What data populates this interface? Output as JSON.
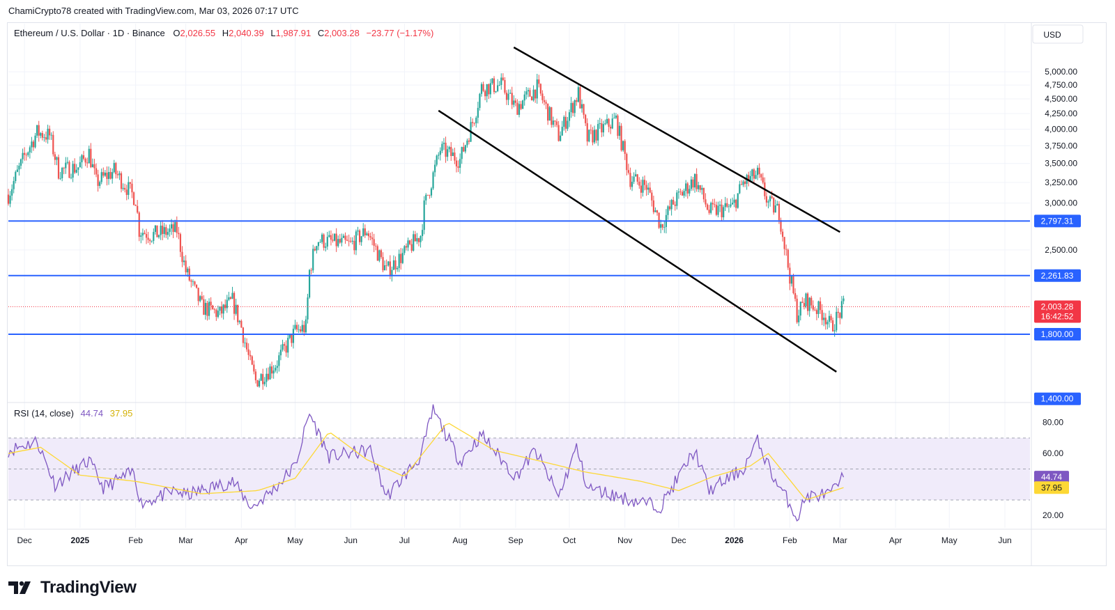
{
  "attribution": "ChamiCrypto78 created with TradingView.com, Mar 03, 2026 07:17 UTC",
  "brand": {
    "name": "TradingView",
    "logo_icon": "tradingview-logo-icon"
  },
  "chart_data": {
    "type": "candlestick",
    "symbol_title": "Ethereum / U.S. Dollar · 1D · Binance",
    "ohlc": {
      "open_label": "O",
      "open": "2,026.55",
      "high_label": "H",
      "high": "2,040.39",
      "low_label": "L",
      "low": "1,987.91",
      "close_label": "C",
      "close": "2,003.28",
      "change": "−23.77 (−1.17%)"
    },
    "currency": "USD",
    "price_axis": {
      "scale": "log",
      "ticks": [
        "5,000.00",
        "4,750.00",
        "4,500.00",
        "4,250.00",
        "4,000.00",
        "3,750.00",
        "3,500.00",
        "3,250.00",
        "3,000.00",
        "2,500.00"
      ]
    },
    "price_range": [
      1380,
      5500
    ],
    "time_axis": {
      "start": "2024-11-22",
      "end": "2026-06-15",
      "labels": [
        {
          "date": "2024-12-01",
          "text": "Dec",
          "bold": false
        },
        {
          "date": "2025-01-01",
          "text": "2025",
          "bold": true
        },
        {
          "date": "2025-02-01",
          "text": "Feb",
          "bold": false
        },
        {
          "date": "2025-03-01",
          "text": "Mar",
          "bold": false
        },
        {
          "date": "2025-04-01",
          "text": "Apr",
          "bold": false
        },
        {
          "date": "2025-05-01",
          "text": "May",
          "bold": false
        },
        {
          "date": "2025-06-01",
          "text": "Jun",
          "bold": false
        },
        {
          "date": "2025-07-01",
          "text": "Jul",
          "bold": false
        },
        {
          "date": "2025-08-01",
          "text": "Aug",
          "bold": false
        },
        {
          "date": "2025-09-01",
          "text": "Sep",
          "bold": false
        },
        {
          "date": "2025-10-01",
          "text": "Oct",
          "bold": false
        },
        {
          "date": "2025-11-01",
          "text": "Nov",
          "bold": false
        },
        {
          "date": "2025-12-01",
          "text": "Dec",
          "bold": false
        },
        {
          "date": "2026-01-01",
          "text": "2026",
          "bold": true
        },
        {
          "date": "2026-02-01",
          "text": "Feb",
          "bold": false
        },
        {
          "date": "2026-03-01",
          "text": "Mar",
          "bold": false
        },
        {
          "date": "2026-04-01",
          "text": "Apr",
          "bold": false
        },
        {
          "date": "2026-05-01",
          "text": "May",
          "bold": false
        },
        {
          "date": "2026-06-01",
          "text": "Jun",
          "bold": false
        }
      ]
    },
    "close_path": [
      {
        "date": "2024-11-22",
        "price": 3100
      },
      {
        "date": "2024-12-01",
        "price": 3600
      },
      {
        "date": "2024-12-08",
        "price": 3950
      },
      {
        "date": "2024-12-15",
        "price": 3900
      },
      {
        "date": "2024-12-20",
        "price": 3400
      },
      {
        "date": "2024-12-31",
        "price": 3450
      },
      {
        "date": "2025-01-06",
        "price": 3650
      },
      {
        "date": "2025-01-10",
        "price": 3250
      },
      {
        "date": "2025-01-20",
        "price": 3400
      },
      {
        "date": "2025-02-01",
        "price": 3050
      },
      {
        "date": "2025-02-03",
        "price": 2700
      },
      {
        "date": "2025-02-10",
        "price": 2650
      },
      {
        "date": "2025-02-24",
        "price": 2700
      },
      {
        "date": "2025-03-01",
        "price": 2300
      },
      {
        "date": "2025-03-10",
        "price": 2000
      },
      {
        "date": "2025-03-20",
        "price": 1950
      },
      {
        "date": "2025-03-27",
        "price": 2050
      },
      {
        "date": "2025-04-01",
        "price": 1850
      },
      {
        "date": "2025-04-06",
        "price": 1600
      },
      {
        "date": "2025-04-09",
        "price": 1500
      },
      {
        "date": "2025-04-20",
        "price": 1600
      },
      {
        "date": "2025-05-01",
        "price": 1820
      },
      {
        "date": "2025-05-07",
        "price": 1850
      },
      {
        "date": "2025-05-09",
        "price": 2300
      },
      {
        "date": "2025-05-13",
        "price": 2600
      },
      {
        "date": "2025-06-01",
        "price": 2550
      },
      {
        "date": "2025-06-10",
        "price": 2700
      },
      {
        "date": "2025-06-21",
        "price": 2300
      },
      {
        "date": "2025-06-30",
        "price": 2450
      },
      {
        "date": "2025-07-10",
        "price": 2650
      },
      {
        "date": "2025-07-12",
        "price": 2950
      },
      {
        "date": "2025-07-21",
        "price": 3700
      },
      {
        "date": "2025-08-01",
        "price": 3550
      },
      {
        "date": "2025-08-09",
        "price": 4200
      },
      {
        "date": "2025-08-13",
        "price": 4700
      },
      {
        "date": "2025-08-24",
        "price": 4750
      },
      {
        "date": "2025-09-01",
        "price": 4350
      },
      {
        "date": "2025-09-13",
        "price": 4700
      },
      {
        "date": "2025-09-25",
        "price": 3900
      },
      {
        "date": "2025-10-06",
        "price": 4600
      },
      {
        "date": "2025-10-11",
        "price": 3850
      },
      {
        "date": "2025-10-27",
        "price": 4150
      },
      {
        "date": "2025-11-04",
        "price": 3300
      },
      {
        "date": "2025-11-13",
        "price": 3200
      },
      {
        "date": "2025-11-21",
        "price": 2750
      },
      {
        "date": "2025-11-28",
        "price": 3000
      },
      {
        "date": "2025-12-10",
        "price": 3300
      },
      {
        "date": "2025-12-18",
        "price": 2900
      },
      {
        "date": "2025-12-31",
        "price": 2950
      },
      {
        "date": "2026-01-06",
        "price": 3250
      },
      {
        "date": "2026-01-14",
        "price": 3350
      },
      {
        "date": "2026-01-20",
        "price": 3000
      },
      {
        "date": "2026-01-26",
        "price": 2900
      },
      {
        "date": "2026-01-31",
        "price": 2350
      },
      {
        "date": "2026-02-05",
        "price": 1950
      },
      {
        "date": "2026-02-10",
        "price": 2050
      },
      {
        "date": "2026-02-20",
        "price": 1950
      },
      {
        "date": "2026-02-24",
        "price": 1850
      },
      {
        "date": "2026-03-03",
        "price": 2003.28
      }
    ],
    "horizontal_levels": [
      {
        "price": 2797.31,
        "label": "2,797.31"
      },
      {
        "price": 2261.83,
        "label": "2,261.83"
      },
      {
        "price": 1800,
        "label": "1,800.00"
      }
    ],
    "extra_price_labels": [
      {
        "price": 1400,
        "label": "1,400.00"
      }
    ],
    "last_price": {
      "price": 2003.28,
      "label": "2,003.28",
      "countdown": "16:42:52"
    },
    "channel_lines": [
      {
        "from": {
          "date": "2025-08-31",
          "price": 5500
        },
        "to": {
          "date": "2026-03-01",
          "price": 2680
        }
      },
      {
        "from": {
          "date": "2025-07-20",
          "price": 4300
        },
        "to": {
          "date": "2026-02-27",
          "price": 1555
        }
      }
    ],
    "rsi": {
      "title": "RSI (14, close)",
      "value": "44.74",
      "ma_value": "37.95",
      "range": [
        12,
        92
      ],
      "ticks": [
        "80.00",
        "60.00",
        "20.00"
      ],
      "band": [
        30,
        70
      ],
      "middle": 50,
      "path": [
        {
          "date": "2024-11-22",
          "value": 62
        },
        {
          "date": "2024-12-08",
          "value": 68
        },
        {
          "date": "2024-12-18",
          "value": 40
        },
        {
          "date": "2025-01-06",
          "value": 55
        },
        {
          "date": "2025-01-14",
          "value": 38
        },
        {
          "date": "2025-01-31",
          "value": 48
        },
        {
          "date": "2025-02-04",
          "value": 28
        },
        {
          "date": "2025-02-24",
          "value": 36
        },
        {
          "date": "2025-03-01",
          "value": 33
        },
        {
          "date": "2025-03-27",
          "value": 42
        },
        {
          "date": "2025-04-07",
          "value": 25
        },
        {
          "date": "2025-04-20",
          "value": 38
        },
        {
          "date": "2025-05-01",
          "value": 52
        },
        {
          "date": "2025-05-09",
          "value": 86
        },
        {
          "date": "2025-05-20",
          "value": 58
        },
        {
          "date": "2025-06-12",
          "value": 62
        },
        {
          "date": "2025-06-21",
          "value": 32
        },
        {
          "date": "2025-07-10",
          "value": 58
        },
        {
          "date": "2025-07-17",
          "value": 88
        },
        {
          "date": "2025-08-01",
          "value": 55
        },
        {
          "date": "2025-08-13",
          "value": 72
        },
        {
          "date": "2025-09-01",
          "value": 45
        },
        {
          "date": "2025-09-12",
          "value": 62
        },
        {
          "date": "2025-09-25",
          "value": 32
        },
        {
          "date": "2025-10-05",
          "value": 64
        },
        {
          "date": "2025-10-11",
          "value": 38
        },
        {
          "date": "2025-11-04",
          "value": 30
        },
        {
          "date": "2025-11-21",
          "value": 26
        },
        {
          "date": "2025-12-10",
          "value": 62
        },
        {
          "date": "2025-12-18",
          "value": 36
        },
        {
          "date": "2026-01-06",
          "value": 50
        },
        {
          "date": "2026-01-14",
          "value": 68
        },
        {
          "date": "2026-01-24",
          "value": 42
        },
        {
          "date": "2026-02-01",
          "value": 28
        },
        {
          "date": "2026-02-05",
          "value": 18
        },
        {
          "date": "2026-02-10",
          "value": 32
        },
        {
          "date": "2026-02-24",
          "value": 34
        },
        {
          "date": "2026-03-03",
          "value": 44.74
        }
      ],
      "ma_path": [
        {
          "date": "2024-11-22",
          "value": 60
        },
        {
          "date": "2024-12-10",
          "value": 64
        },
        {
          "date": "2025-01-01",
          "value": 46
        },
        {
          "date": "2025-02-01",
          "value": 42
        },
        {
          "date": "2025-03-10",
          "value": 34
        },
        {
          "date": "2025-04-10",
          "value": 36
        },
        {
          "date": "2025-05-01",
          "value": 44
        },
        {
          "date": "2025-05-20",
          "value": 74
        },
        {
          "date": "2025-06-10",
          "value": 56
        },
        {
          "date": "2025-07-01",
          "value": 45
        },
        {
          "date": "2025-07-25",
          "value": 80
        },
        {
          "date": "2025-08-20",
          "value": 62
        },
        {
          "date": "2025-09-15",
          "value": 55
        },
        {
          "date": "2025-10-10",
          "value": 48
        },
        {
          "date": "2025-11-10",
          "value": 42
        },
        {
          "date": "2025-12-01",
          "value": 36
        },
        {
          "date": "2025-12-20",
          "value": 45
        },
        {
          "date": "2026-01-10",
          "value": 52
        },
        {
          "date": "2026-01-20",
          "value": 60
        },
        {
          "date": "2026-02-10",
          "value": 30
        },
        {
          "date": "2026-03-03",
          "value": 37.95
        }
      ]
    },
    "colors": {
      "up": "#26a69a",
      "down": "#ef5350",
      "level": "#2962ff",
      "channel": "#000000",
      "rsi": "#7e57c2",
      "rsi_ma": "#fdd835",
      "rsi_band_fill": "#f0ebfa",
      "last_price": "#f23645",
      "grid": "#f0f3fa"
    }
  }
}
